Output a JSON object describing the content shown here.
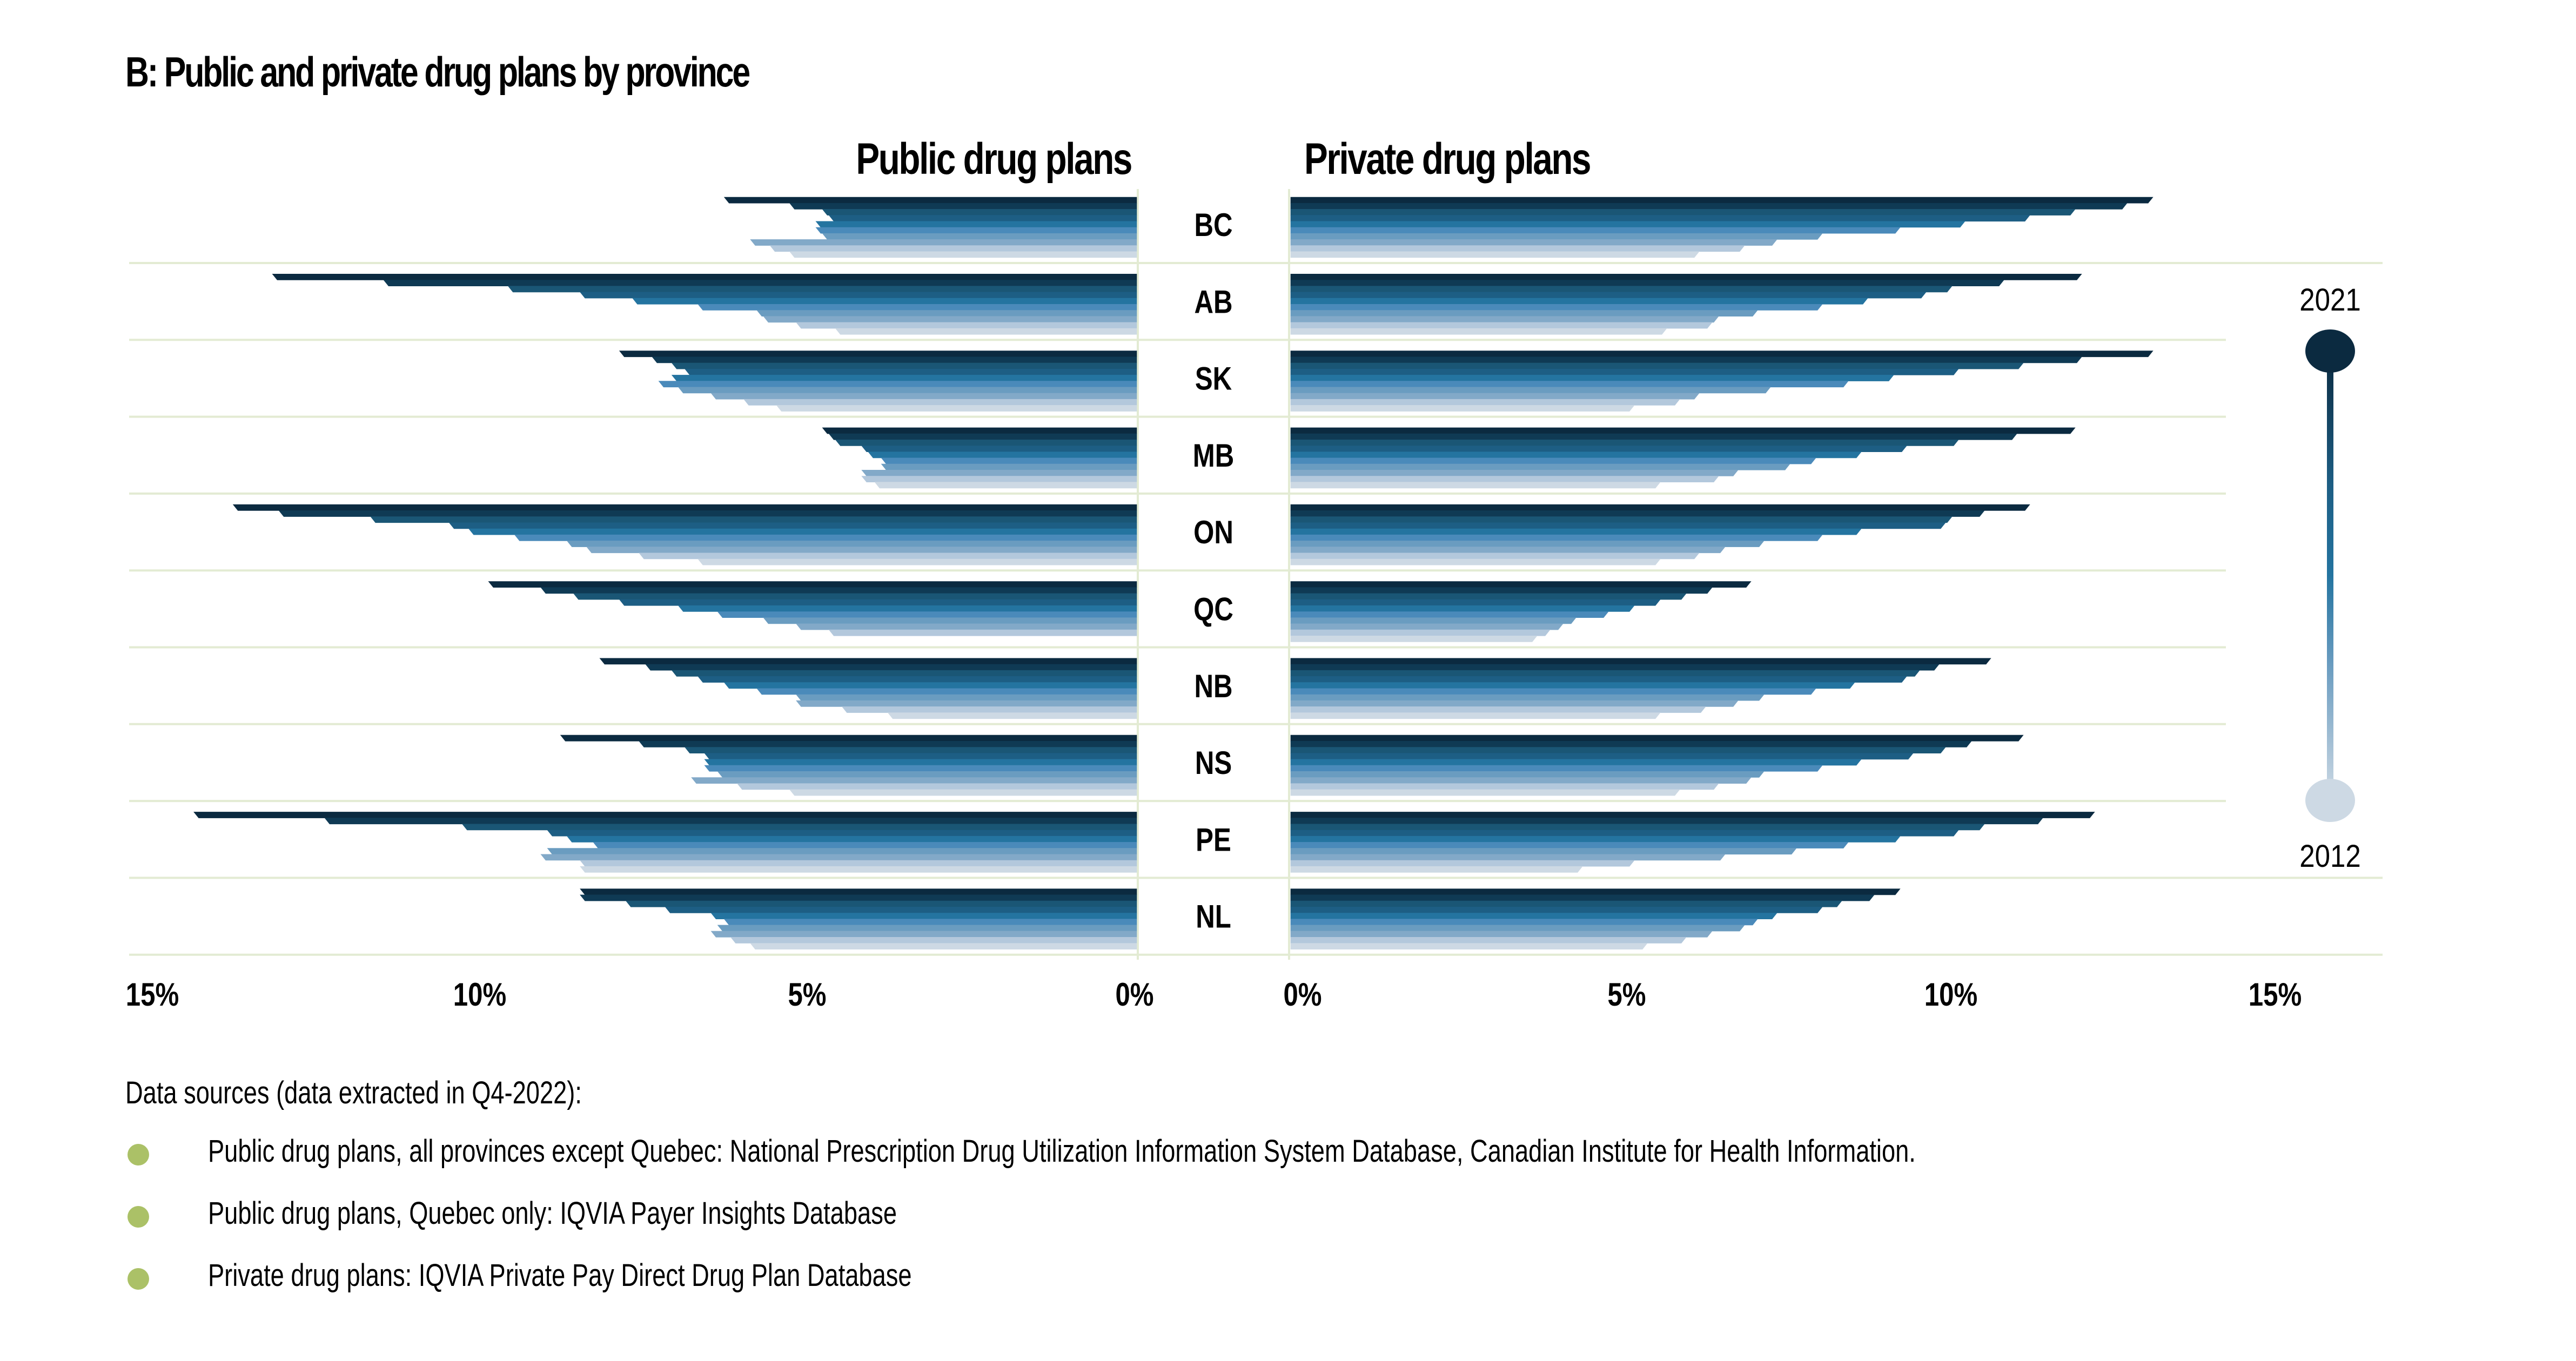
{
  "title": "B: Public and private drug plans by province",
  "colors": {
    "years": [
      "#cdd9e4",
      "#b3c8dc",
      "#82a9c8",
      "#6a9cc0",
      "#4a8aba",
      "#2474a0",
      "#1d5e84",
      "#1a5675",
      "#0f3a54",
      "#0b2a40"
    ],
    "gridline": "#e3ebd3",
    "bullet": "#abc167",
    "text": "#000000"
  },
  "legend": {
    "top_label": "2021",
    "bottom_label": "2012"
  },
  "footer": {
    "heading": "Data sources (data extracted in Q4-2022):",
    "sources": [
      "Public drug plans, all provinces except Quebec: National Prescription Drug Utilization Information System Database, Canadian Institute for Health Information.",
      "Public drug plans, Quebec only: IQVIA Payer Insights Database",
      "Private drug plans: IQVIA Private Pay Direct Drug Plan Database"
    ]
  },
  "chart_data": {
    "type": "bar",
    "orientation": "horizontal, back-to-back (butterfly)",
    "title": "B: Public and private drug plans by province",
    "years": [
      2012,
      2013,
      2014,
      2015,
      2016,
      2017,
      2018,
      2019,
      2020,
      2021
    ],
    "categories": [
      "BC",
      "AB",
      "SK",
      "MB",
      "ON",
      "QC",
      "NB",
      "NS",
      "PE",
      "NL"
    ],
    "unit": "%",
    "panels": [
      {
        "name": "Public drug plans",
        "direction": "left",
        "xlim": [
          0,
          15
        ],
        "ticks": [
          "15%",
          "10%",
          "5%",
          "0%"
        ],
        "tick_values": [
          15,
          10,
          5,
          0
        ],
        "series": {
          "BC": [
            5.3,
            5.6,
            5.9,
            4.8,
            4.9,
            4.9,
            4.7,
            4.8,
            5.3,
            6.3
          ],
          "AB": [
            4.6,
            5.2,
            5.7,
            5.8,
            6.7,
            7.7,
            8.5,
            9.6,
            11.5,
            13.2
          ],
          "SK": [
            5.5,
            6.0,
            6.5,
            7.0,
            7.3,
            7.1,
            6.9,
            7.1,
            7.4,
            7.9
          ],
          "MB": [
            4.0,
            4.2,
            4.2,
            3.9,
            3.9,
            4.1,
            4.2,
            4.6,
            4.7,
            4.8
          ],
          "ON": [
            6.7,
            7.6,
            8.4,
            8.7,
            9.5,
            10.2,
            10.5,
            11.7,
            13.1,
            13.8
          ],
          "QC": [
            null,
            4.7,
            5.2,
            5.7,
            6.4,
            7.0,
            7.9,
            8.6,
            9.1,
            9.9
          ],
          "NB": [
            3.8,
            4.5,
            5.2,
            5.2,
            5.8,
            6.3,
            6.7,
            7.1,
            7.5,
            8.2
          ],
          "NS": [
            5.3,
            6.1,
            6.8,
            6.4,
            6.6,
            6.6,
            6.6,
            6.9,
            7.6,
            8.8
          ],
          "PE": [
            8.5,
            8.5,
            9.1,
            9.0,
            8.3,
            8.7,
            9.0,
            10.3,
            12.4,
            14.4
          ],
          "NL": [
            5.9,
            6.2,
            6.5,
            6.4,
            6.3,
            6.5,
            7.2,
            7.8,
            8.5,
            8.5
          ]
        }
      },
      {
        "name": "Private drug plans",
        "direction": "right",
        "xlim": [
          0,
          15
        ],
        "ticks": [
          "0%",
          "5%",
          "10%",
          "15%"
        ],
        "tick_values": [
          0,
          5,
          10,
          15
        ],
        "series": {
          "BC": [
            6.3,
            7.0,
            7.5,
            8.2,
            9.4,
            10.4,
            11.4,
            12.1,
            12.9,
            13.3
          ],
          "AB": [
            5.8,
            6.5,
            6.6,
            7.2,
            8.2,
            8.9,
            9.8,
            10.2,
            11.0,
            12.2
          ],
          "SK": [
            5.3,
            6.0,
            6.3,
            7.4,
            8.6,
            9.3,
            10.3,
            11.3,
            12.2,
            13.3
          ],
          "MB": [
            5.7,
            6.6,
            6.9,
            7.7,
            8.1,
            8.8,
            9.5,
            10.3,
            11.2,
            12.1
          ],
          "ON": [
            5.7,
            6.3,
            6.7,
            7.3,
            8.2,
            8.8,
            10.1,
            10.2,
            10.7,
            11.4
          ],
          "QC": [
            3.8,
            4.0,
            4.2,
            4.4,
            4.9,
            5.3,
            5.7,
            6.1,
            6.5,
            7.1
          ],
          "NB": [
            5.7,
            6.4,
            6.9,
            7.3,
            8.1,
            8.7,
            9.5,
            9.7,
            10.0,
            10.8
          ],
          "NS": [
            6.0,
            6.6,
            7.1,
            7.3,
            8.2,
            8.8,
            9.6,
            10.1,
            10.5,
            11.3
          ],
          "PE": [
            4.5,
            5.3,
            6.7,
            7.8,
            8.6,
            9.4,
            10.3,
            10.7,
            11.6,
            12.4
          ],
          "NL": [
            5.5,
            6.1,
            6.5,
            7.0,
            7.2,
            7.5,
            8.2,
            8.5,
            9.0,
            9.4
          ]
        }
      }
    ],
    "legend": {
      "type": "color gradient",
      "from": "2012",
      "to": "2021",
      "placement": "right"
    },
    "grid": true
  }
}
